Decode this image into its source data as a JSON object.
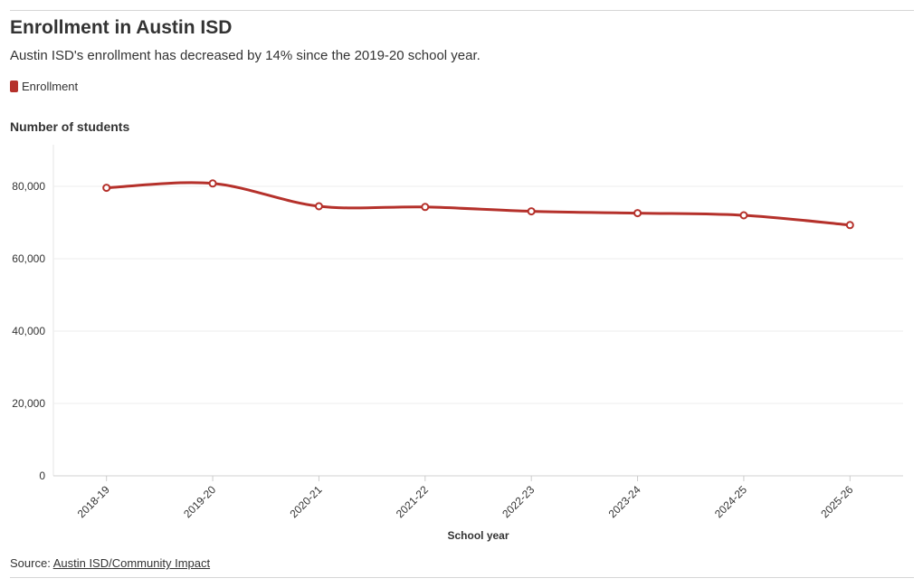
{
  "title": "Enrollment in Austin ISD",
  "subtitle": "Austin ISD's enrollment has decreased by 14% since the 2019-20 school year.",
  "source_label": "Source: ",
  "source_link": "Austin ISD/Community Impact",
  "chart_data": {
    "type": "line",
    "title": "Enrollment in Austin ISD",
    "xlabel": "School year",
    "ylabel": "Number of students",
    "categories": [
      "2018-19",
      "2019-20",
      "2020-21",
      "2021-22",
      "2022-23",
      "2023-24",
      "2024-25",
      "2025-26"
    ],
    "series": [
      {
        "name": "Enrollment",
        "color": "#b5312b",
        "values": [
          79600,
          80800,
          74500,
          74300,
          73100,
          72600,
          72000,
          69300
        ]
      }
    ],
    "ylim": [
      0,
      90000
    ],
    "yticks": [
      0,
      20000,
      40000,
      60000,
      80000
    ],
    "ytick_labels": [
      "0",
      "20,000",
      "40,000",
      "60,000",
      "80,000"
    ],
    "grid": true,
    "legend": "top-left"
  }
}
